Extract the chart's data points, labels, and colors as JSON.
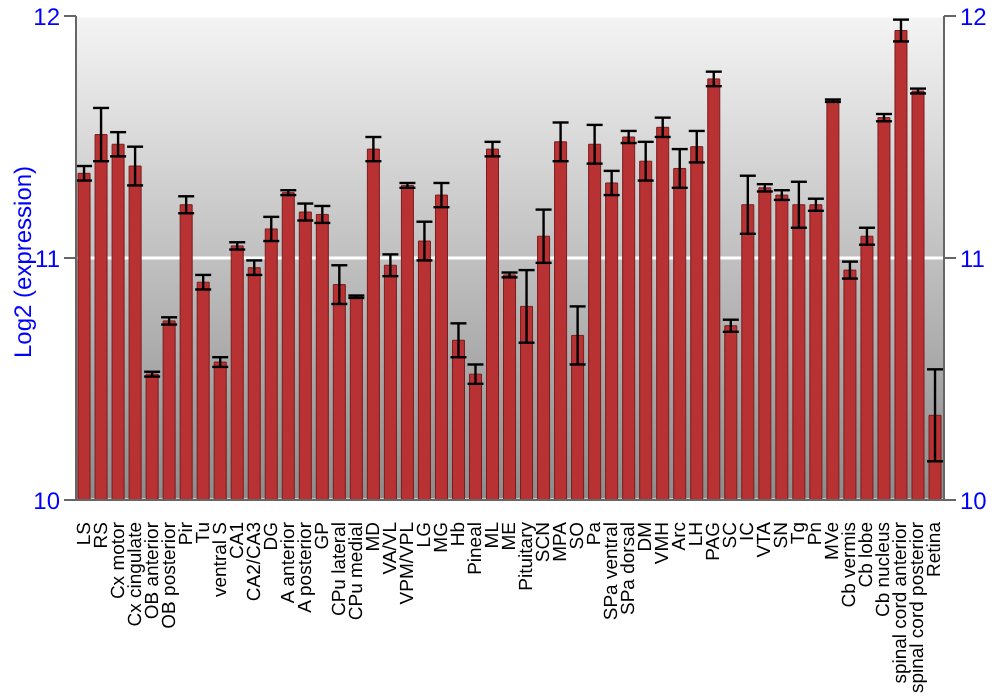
{
  "chart_data": {
    "type": "bar",
    "ylabel": "Log2 (expression)",
    "categories": [
      "LS",
      "RS",
      "Cx motor",
      "Cx cingulate",
      "OB anterior",
      "OB posterior",
      "Pir",
      "Tu",
      "ventral S",
      "CA1",
      "CA2/CA3",
      "DG",
      "A anterior",
      "A posterior",
      "GP",
      "CPu lateral",
      "CPu medial",
      "MD",
      "VA/VL",
      "VPM/VPL",
      "LG",
      "MG",
      "Hb",
      "Pineal",
      "ML",
      "ME",
      "Pituitary",
      "SCN",
      "MPA",
      "SO",
      "Pa",
      "SPa ventral",
      "SPa dorsal",
      "DM",
      "VMH",
      "Arc",
      "LH",
      "PAG",
      "SC",
      "IC",
      "VTA",
      "SN",
      "Tg",
      "Pn",
      "MVe",
      "Cb vermis",
      "Cb lobe",
      "Cb nucleus",
      "spinal cord anterior",
      "spinal cord posterior",
      "Retina"
    ],
    "series": [
      {
        "color": "#b83234",
        "values": [
          11.35,
          11.51,
          11.47,
          11.38,
          10.52,
          10.74,
          11.22,
          10.9,
          10.57,
          11.05,
          10.96,
          11.12,
          11.27,
          11.19,
          11.18,
          10.89,
          10.84,
          11.45,
          10.97,
          11.3,
          11.07,
          11.26,
          10.66,
          10.52,
          11.45,
          10.93,
          10.8,
          11.09,
          11.48,
          10.68,
          11.47,
          11.31,
          11.5,
          11.4,
          11.54,
          11.37,
          11.46,
          11.74,
          10.72,
          11.22,
          11.29,
          11.26,
          11.22,
          11.22,
          11.65,
          10.95,
          11.09,
          11.58,
          11.94,
          11.69,
          10.35
        ],
        "errors": [
          0.03,
          0.11,
          0.05,
          0.08,
          0.01,
          0.015,
          0.035,
          0.03,
          0.02,
          0.015,
          0.03,
          0.05,
          0.01,
          0.035,
          0.035,
          0.08,
          0.005,
          0.05,
          0.045,
          0.01,
          0.08,
          0.05,
          0.07,
          0.04,
          0.03,
          0.01,
          0.15,
          0.11,
          0.08,
          0.12,
          0.08,
          0.05,
          0.025,
          0.08,
          0.04,
          0.08,
          0.065,
          0.03,
          0.025,
          0.12,
          0.015,
          0.02,
          0.095,
          0.025,
          0.005,
          0.035,
          0.035,
          0.015,
          0.045,
          0.01,
          0.19
        ]
      }
    ],
    "ylim": [
      10,
      12
    ],
    "yticks": [
      10,
      11,
      12
    ],
    "y2lim": [
      10,
      12
    ],
    "y2ticks": [
      10,
      11,
      12
    ],
    "grid": "y",
    "legend": false
  }
}
